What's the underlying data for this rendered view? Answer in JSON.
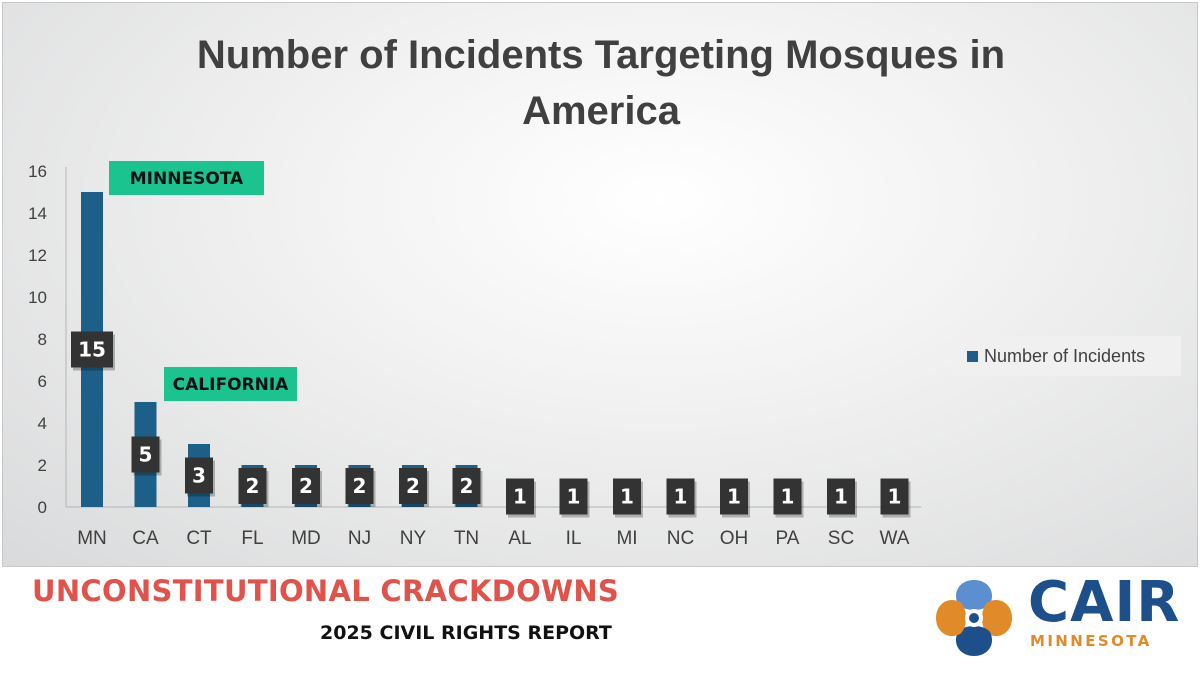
{
  "chart_data": {
    "type": "bar",
    "title_lines": [
      "Number of Incidents Targeting Mosques in",
      "America"
    ],
    "categories": [
      "MN",
      "CA",
      "CT",
      "FL",
      "MD",
      "NJ",
      "NY",
      "TN",
      "AL",
      "IL",
      "MI",
      "NC",
      "OH",
      "PA",
      "SC",
      "WA"
    ],
    "series": [
      {
        "name": "Number of Incidents",
        "values": [
          15,
          5,
          3,
          2,
          2,
          2,
          2,
          2,
          1,
          1,
          1,
          1,
          1,
          1,
          1,
          1
        ],
        "color": "#1c5f88"
      }
    ],
    "data_labels": [
      "15",
      "5",
      "3",
      "2",
      "2",
      "2",
      "2",
      "2",
      "1",
      "1",
      "1",
      "1",
      "1",
      "1",
      "1",
      "1"
    ],
    "ylim": [
      0,
      16
    ],
    "yticks": [
      "0",
      "2",
      "4",
      "6",
      "8",
      "10",
      "12",
      "14",
      "16"
    ],
    "xlabel": "",
    "ylabel": "",
    "grid": false,
    "legend_position": "right",
    "annotations": [
      {
        "text": "MINNESOTA",
        "category": "MN",
        "color": "#1bc38f"
      },
      {
        "text": "CALIFORNIA",
        "category": "CA",
        "color": "#1bc38f"
      }
    ]
  },
  "footer": {
    "report_title": "UNCONSTITUTIONAL CRACKDOWNS",
    "report_subtitle": "2025 CIVIL RIGHTS REPORT"
  },
  "logo": {
    "name": "CAIR",
    "sub": "MINNESOTA",
    "icon": "cair-logo-icon",
    "colors": {
      "blue": "#1d4f8a",
      "orange": "#e08a2a",
      "light_blue": "#5b8fcf"
    }
  }
}
